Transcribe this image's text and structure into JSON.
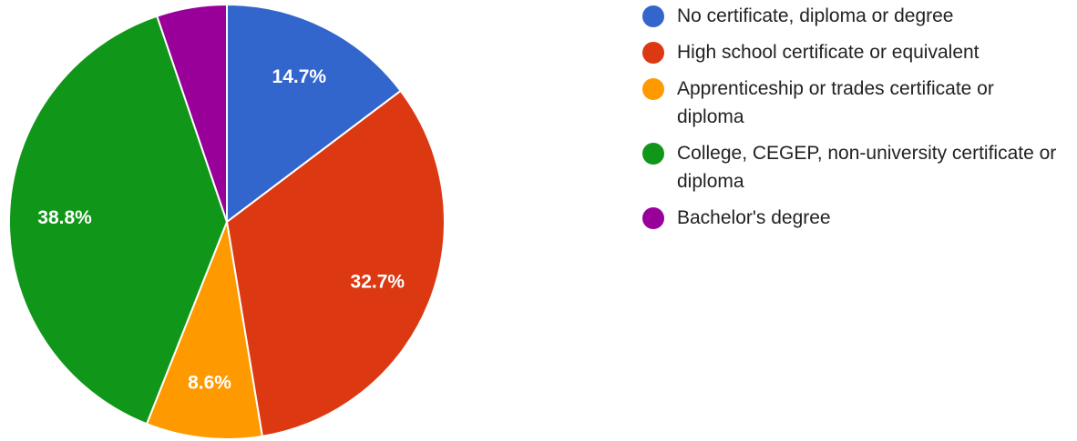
{
  "chart_data": {
    "type": "pie",
    "slices": [
      {
        "label": "No certificate, diploma or degree",
        "value": 14.7,
        "display": "14.7%",
        "color": "#3366cc"
      },
      {
        "label": "High school certificate or equivalent",
        "value": 32.7,
        "display": "32.7%",
        "color": "#dc3912"
      },
      {
        "label": "Apprenticeship or trades certificate or diploma",
        "value": 8.6,
        "display": "8.6%",
        "color": "#ff9900"
      },
      {
        "label": "College, CEGEP, non-university certificate or diploma",
        "value": 38.8,
        "display": "38.8%",
        "color": "#109618"
      },
      {
        "label": "Bachelor's degree",
        "value": 5.2,
        "display": "",
        "color": "#990099"
      }
    ],
    "legend_position": "right",
    "start_angle": "top",
    "direction": "clockwise"
  }
}
